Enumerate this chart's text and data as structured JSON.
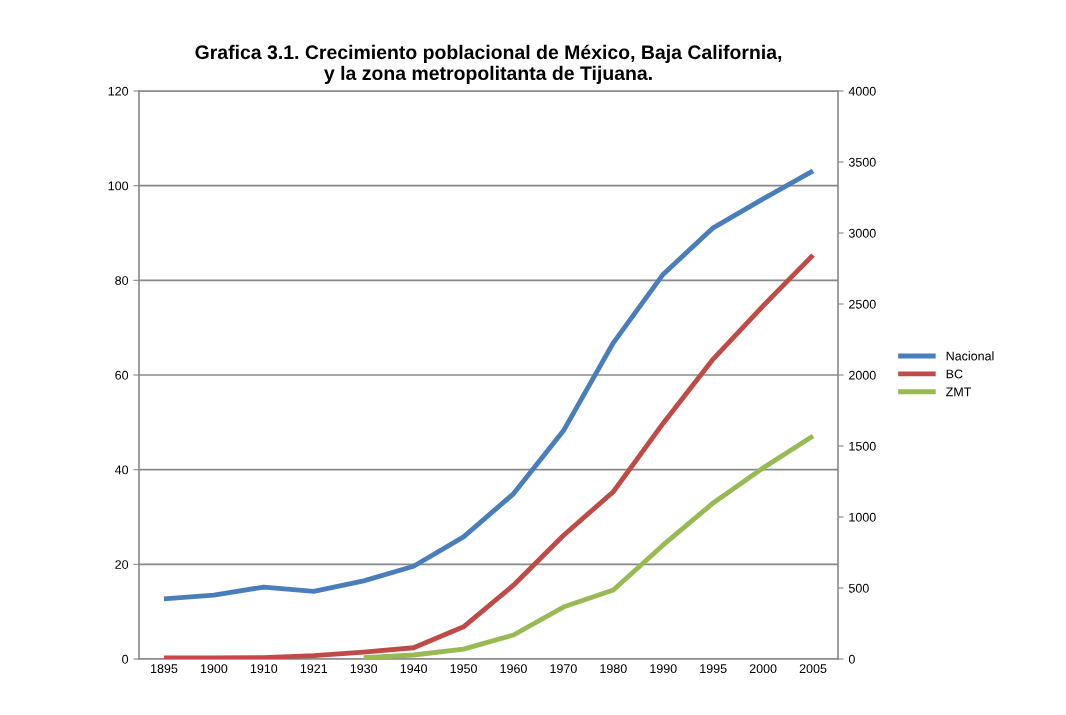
{
  "chart_data": {
    "type": "line",
    "title": "Grafica 3.1. Crecimiento poblacional de México, Baja California,\ny la zona metropolitanta de Tijuana.",
    "categories": [
      "1895",
      "1900",
      "1910",
      "1921",
      "1930",
      "1940",
      "1950",
      "1960",
      "1970",
      "1980",
      "1990",
      "1995",
      "2000",
      "2005"
    ],
    "series": [
      {
        "name": "Nacional",
        "color": "#4a7ebb",
        "values": [
          12.7,
          13.5,
          15.2,
          14.3,
          16.5,
          19.6,
          25.8,
          34.9,
          48.2,
          66.8,
          81.3,
          91.1,
          97.2,
          103.1
        ]
      },
      {
        "name": "BC",
        "color": "#be4b48",
        "axis": "y2",
        "values": [
          8,
          8,
          10,
          24,
          48,
          79,
          227,
          520,
          870,
          1178,
          1661,
          2112,
          2487,
          2844
        ]
      },
      {
        "name": "ZMT",
        "color": "#98b954",
        "axis": "y2",
        "values": [
          null,
          null,
          null,
          null,
          10,
          28,
          70,
          169,
          366,
          486,
          803,
          1099,
          1345,
          1570
        ]
      }
    ],
    "ylim": [
      0,
      120
    ],
    "yticks": [
      0,
      20,
      40,
      60,
      80,
      100,
      120
    ],
    "y2lim": [
      0,
      4000
    ],
    "y2ticks": [
      0,
      500,
      1000,
      1500,
      2000,
      2500,
      3000,
      3500,
      4000
    ],
    "grid": "y",
    "legend": "right",
    "marker": "none",
    "line_style": "solid"
  }
}
